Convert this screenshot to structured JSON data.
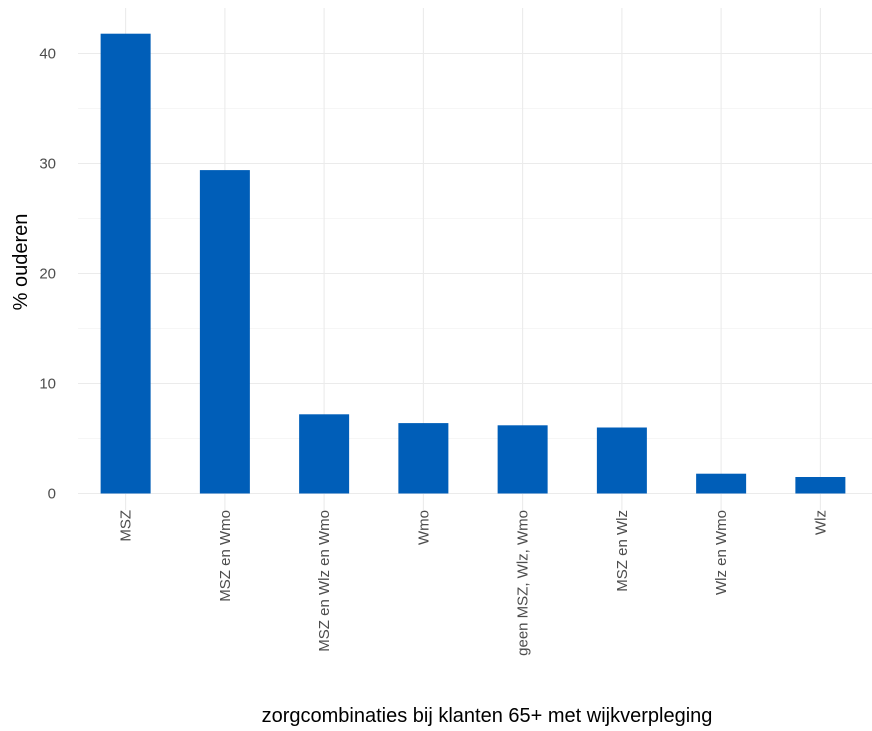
{
  "chart_data": {
    "type": "bar",
    "title": "",
    "xlabel": "zorgcombinaties bij klanten 65+ met wijkverpleging",
    "ylabel": "% ouderen",
    "categories": [
      "MSZ",
      "MSZ en Wmo",
      "MSZ en Wlz en Wmo",
      "Wmo",
      "geen MSZ, Wlz, Wmo",
      "MSZ en Wlz",
      "Wlz en Wmo",
      "Wlz"
    ],
    "values": [
      41.8,
      29.4,
      7.2,
      6.4,
      6.2,
      6.0,
      1.8,
      1.5
    ],
    "ylim": [
      0,
      43
    ],
    "yticks": [
      0,
      10,
      20,
      30,
      40
    ],
    "grid": true,
    "bar_color": "#005EB8"
  }
}
